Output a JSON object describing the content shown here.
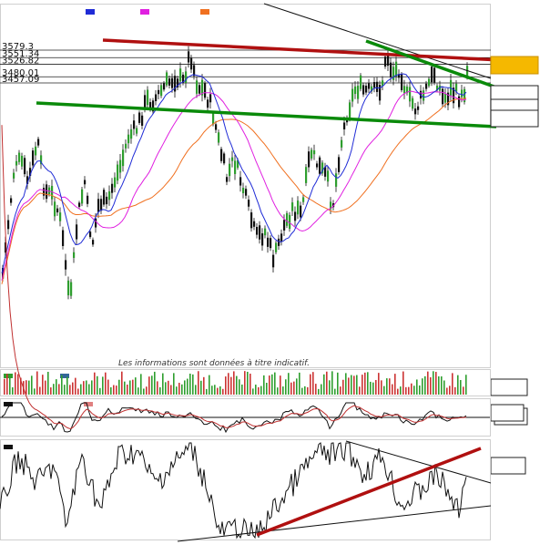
{
  "legend_colors": [
    "#1f2bd6",
    "#e020e0",
    "#f07020"
  ],
  "disclaimer": "Les informations sont données à titre indicatif.",
  "colors": {
    "up_candle": "#2e9e2e",
    "down_candle": "#111111",
    "ma_short": "#1f2bd6",
    "ma_mid": "#e020e0",
    "ma_long": "#f07020",
    "resistance": "#b01010",
    "support": "#0a8a0a",
    "highlight_box": "#f5b800"
  },
  "chart_data": [
    {
      "type": "candlestick",
      "title": "",
      "price_labels": [
        "3579.3",
        "3551.34",
        "3526.82",
        "3480.01",
        "3457.09"
      ],
      "price_levels": [
        3579.3,
        3551.34,
        3526.82,
        3480.01,
        3457.09
      ],
      "series": [
        {
          "name": "",
          "kind": "moving_average_short"
        },
        {
          "name": "",
          "kind": "moving_average_mid"
        },
        {
          "name": "",
          "kind": "moving_average_long"
        }
      ],
      "trendlines": [
        {
          "kind": "resistance",
          "color": "red"
        },
        {
          "kind": "support",
          "color": "green"
        },
        {
          "kind": "short_term_resistance",
          "color": "green"
        }
      ]
    },
    {
      "type": "bar",
      "title": "",
      "description": "volume"
    },
    {
      "type": "line",
      "title": "",
      "description": "oscillator with signal line"
    },
    {
      "type": "line",
      "title": "",
      "description": "oscillator with trendlines"
    }
  ]
}
